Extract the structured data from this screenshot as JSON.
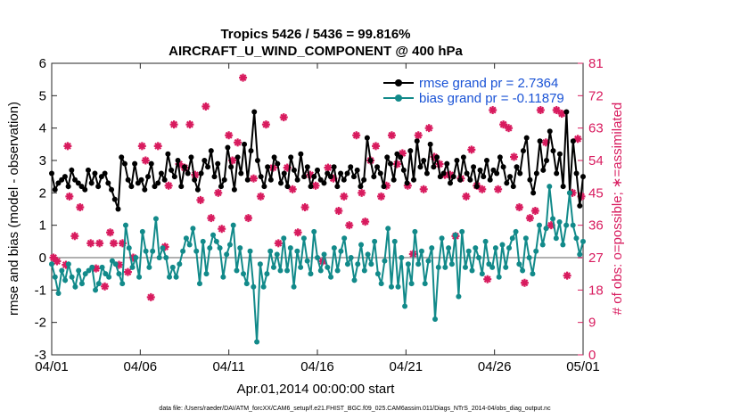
{
  "chart_data": {
    "type": "line",
    "title": "Tropics 5426 / 5436 = 99.816%",
    "subtitle": "AIRCRAFT_U_WIND_COMPONENT @ 400 hPa",
    "xlabel": "Apr.01,2014 00:00:00 start",
    "ylabel": "rmse and bias (model - observation)",
    "ylabel_right": "# of obs: o=possible; ∗=assimilated",
    "footnote": "data file: /Users/raeder/DAI/ATM_forcXX/CAM6_setup/f.e21.FHIST_BGC.f09_025.CAM6assim.011/Diags_NTrS_2014-04/obs_diag_output.nc",
    "xlim": [
      0,
      30
    ],
    "ylim": [
      -3,
      6
    ],
    "ylim_right": [
      0,
      81
    ],
    "x_tick_labels": [
      "04/01",
      "04/06",
      "04/11",
      "04/16",
      "04/21",
      "04/26",
      "05/01"
    ],
    "x_tick_values": [
      0,
      5,
      10,
      15,
      20,
      25,
      30
    ],
    "y_tick_labels": [
      "-3",
      "-2",
      "-1",
      "0",
      "1",
      "2",
      "3",
      "4",
      "5",
      "6"
    ],
    "y_tick_values": [
      -3,
      -2,
      -1,
      0,
      1,
      2,
      3,
      4,
      5,
      6
    ],
    "y_right_tick_labels": [
      "0",
      "9",
      "18",
      "27",
      "36",
      "45",
      "54",
      "63",
      "72",
      "81"
    ],
    "y_right_tick_values": [
      0,
      9,
      18,
      27,
      36,
      45,
      54,
      63,
      72,
      81
    ],
    "colors": {
      "rmse": "#000000",
      "bias": "#128a8a",
      "obs": "#d81b5e",
      "zero_line": "#b0b0b0",
      "legend_text": "#1a53d6"
    },
    "series": [
      {
        "name": "rmse grand pr = 2.7364",
        "values": [
          2.6,
          2.1,
          2.3,
          2.4,
          2.5,
          2.2,
          2.7,
          2.4,
          2.3,
          2.2,
          2.1,
          2.7,
          2.3,
          2.6,
          2.2,
          2.5,
          2.6,
          2.3,
          2.1,
          1.8,
          1.5,
          3.1,
          2.9,
          2.4,
          2.2,
          2.9,
          2.3,
          2.4,
          2.1,
          2.5,
          2.9,
          2.2,
          2.3,
          2.6,
          2.4,
          3.2,
          2.7,
          2.5,
          3.0,
          2.2,
          2.8,
          2.6,
          3.1,
          2.4,
          2.1,
          2.6,
          3.0,
          2.8,
          3.3,
          2.5,
          2.9,
          2.2,
          2.4,
          3.4,
          2.8,
          2.1,
          3.1,
          2.6,
          3.5,
          2.4,
          3.3,
          4.5,
          3.0,
          2.5,
          2.2,
          2.8,
          2.4,
          3.1,
          2.9,
          2.3,
          2.6,
          2.2,
          3.1,
          2.7,
          2.4,
          3.2,
          2.5,
          2.8,
          2.2,
          2.5,
          2.7,
          2.4,
          2.3,
          2.6,
          2.5,
          2.8,
          2.2,
          2.6,
          2.4,
          2.6,
          2.8,
          2.5,
          2.7,
          2.2,
          2.4,
          3.7,
          3.0,
          2.5,
          2.8,
          2.6,
          2.2,
          3.1,
          2.9,
          2.4,
          3.2,
          3.1,
          2.7,
          2.3,
          3.3,
          2.4,
          3.6,
          2.8,
          3.0,
          2.6,
          3.5,
          2.8,
          3.1,
          2.5,
          2.6,
          2.9,
          2.3,
          2.5,
          3.0,
          2.4,
          3.1,
          2.6,
          2.4,
          2.8,
          2.2,
          2.7,
          2.5,
          3.0,
          2.4,
          2.7,
          2.6,
          3.1,
          2.8,
          2.3,
          2.5,
          2.2,
          2.8,
          2.6,
          3.3,
          3.7,
          2.4,
          2.0,
          2.6,
          3.6,
          2.7,
          3.0,
          3.9,
          3.3,
          2.6,
          3.2,
          2.2,
          4.5,
          2.0,
          3.6,
          2.6,
          1.6,
          2.5
        ]
      },
      {
        "name": "bias grand pr = -0.11879",
        "values": [
          -0.2,
          -0.6,
          -1.1,
          -0.4,
          -0.7,
          -0.2,
          -0.6,
          -0.9,
          -0.4,
          -0.8,
          -0.5,
          -0.4,
          -0.3,
          -1.0,
          -0.8,
          -0.3,
          -0.5,
          -0.6,
          -0.1,
          -0.2,
          -0.5,
          -0.8,
          1.0,
          0.3,
          -0.3,
          0.0,
          -0.6,
          0.8,
          0.2,
          -0.3,
          0.2,
          1.2,
          0.0,
          0.3,
          0.0,
          -0.6,
          -0.3,
          -0.6,
          -0.2,
          0.2,
          0.6,
          0.4,
          0.9,
          0.2,
          -0.8,
          0.5,
          -0.5,
          0.3,
          0.7,
          0.5,
          0.3,
          -0.6,
          0.1,
          0.4,
          1.0,
          -0.4,
          0.3,
          -0.5,
          -0.8,
          0.2,
          -0.9,
          -2.6,
          -0.2,
          -0.9,
          -0.5,
          0.2,
          -0.3,
          0.1,
          -0.4,
          0.6,
          -0.4,
          0.3,
          -0.9,
          0.2,
          -0.3,
          0.6,
          -0.1,
          -0.5,
          0.8,
          0.0,
          -0.4,
          0.1,
          -0.3,
          -0.6,
          0.3,
          -0.4,
          0.2,
          0.6,
          -0.2,
          0.0,
          -0.7,
          -0.2,
          0.4,
          -0.4,
          0.1,
          -0.2,
          0.5,
          -0.5,
          -0.8,
          -0.1,
          0.9,
          -0.9,
          0.5,
          -0.9,
          0.0,
          -1.5,
          -0.2,
          -0.8,
          0.8,
          -0.2,
          0.2,
          -0.8,
          -0.1,
          0.3,
          -1.9,
          -0.3,
          0.6,
          -0.3,
          0.3,
          -0.2,
          0.7,
          -1.2,
          0.8,
          -0.3,
          0.2,
          -0.4,
          0.3,
          0.0,
          -0.5,
          0.5,
          -0.2,
          -0.3,
          0.3,
          -0.6,
          0.4,
          -0.3,
          0.3,
          0.6,
          0.8,
          -0.2,
          -0.4,
          0.6,
          0.0,
          -0.5,
          0.2,
          1.0,
          0.4,
          0.9,
          2.2,
          1.2,
          0.6,
          1.1,
          0.4,
          1.0,
          2.0,
          1.0,
          0.6,
          0.1,
          0.5
        ]
      }
    ],
    "obs_assimilated": {
      "x": [
        0.1,
        0.3,
        0.8,
        0.9,
        1.0,
        1.3,
        1.6,
        2.2,
        2.5,
        2.7,
        3.0,
        3.3,
        3.5,
        3.8,
        4.0,
        4.3,
        4.6,
        5.1,
        5.3,
        5.6,
        6.0,
        6.4,
        6.6,
        6.9,
        7.2,
        7.5,
        7.8,
        8.1,
        8.4,
        8.7,
        9.0,
        9.4,
        9.6,
        10.0,
        10.2,
        10.5,
        10.8,
        11.1,
        11.4,
        11.8,
        12.1,
        12.5,
        12.8,
        13.1,
        13.3,
        13.6,
        13.9,
        14.3,
        14.6,
        14.9,
        15.3,
        15.6,
        15.9,
        16.2,
        16.5,
        16.8,
        17.2,
        17.5,
        17.7,
        18.0,
        18.3,
        18.6,
        18.9,
        19.2,
        19.5,
        19.8,
        20.1,
        20.4,
        20.7,
        21.0,
        21.3,
        21.6,
        21.9,
        22.2,
        22.5,
        22.8,
        23.1,
        23.4,
        23.7,
        24.0,
        24.3,
        24.6,
        24.9,
        25.2,
        25.5,
        25.8,
        26.1,
        26.4,
        26.7,
        27.0,
        27.3,
        27.6,
        27.9,
        28.2,
        28.5,
        28.8,
        29.1,
        29.4,
        29.7,
        29.9
      ],
      "y": [
        27,
        26,
        25,
        58,
        44,
        33,
        41,
        31,
        24,
        31,
        19,
        34,
        31,
        25,
        31,
        23,
        27,
        58,
        54,
        16,
        58,
        30,
        47,
        64,
        53,
        52,
        64,
        50,
        43,
        69,
        38,
        45,
        35,
        61,
        54,
        59,
        77,
        38,
        49,
        44,
        64,
        52,
        31,
        66,
        52,
        46,
        34,
        41,
        50,
        47,
        26,
        52,
        49,
        40,
        44,
        36,
        61,
        45,
        37,
        54,
        58,
        44,
        47,
        61,
        53,
        56,
        47,
        28,
        61,
        46,
        63,
        55,
        53,
        50,
        50,
        33,
        49,
        44,
        57,
        47,
        46,
        21,
        68,
        46,
        64,
        63,
        55,
        41,
        20,
        38,
        40,
        68,
        59,
        36,
        68,
        67,
        22,
        45,
        60,
        44
      ]
    },
    "legend": {
      "rmse_label": "rmse grand pr = 2.7364",
      "bias_label": "bias grand pr = -0.11879",
      "placement": "top-right"
    }
  }
}
